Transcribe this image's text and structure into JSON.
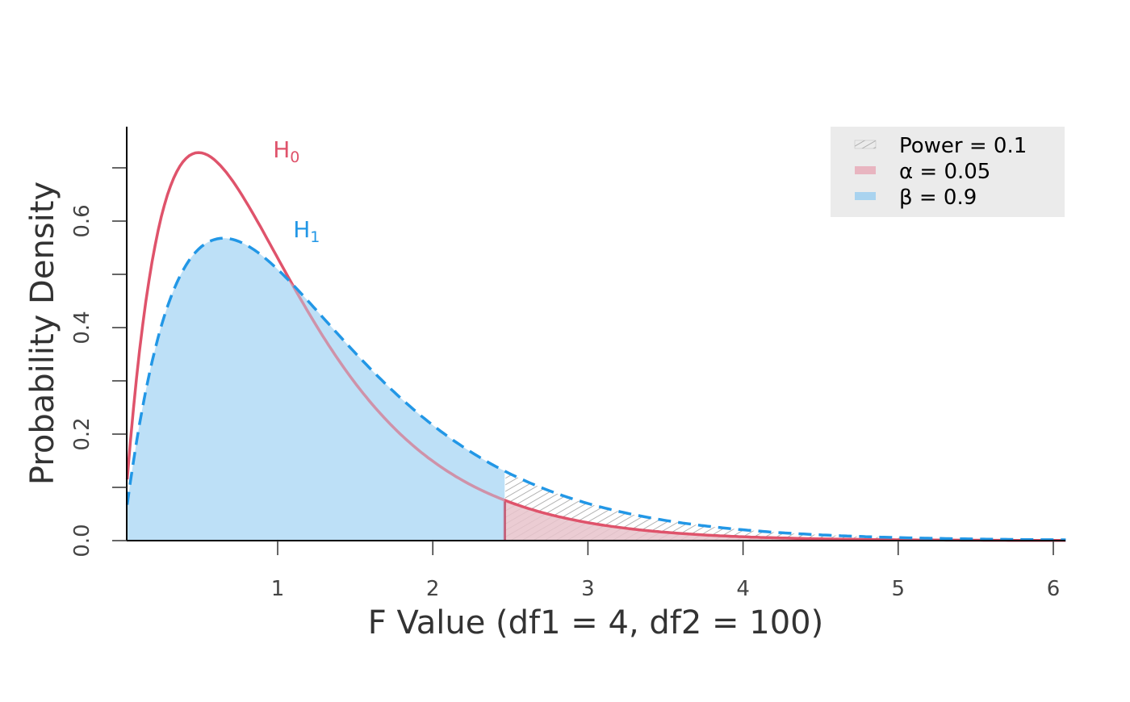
{
  "chart_data": {
    "type": "area",
    "title": "",
    "xlabel": "F Value (df1 = 4, df2 = 100)",
    "ylabel": "Probability Density",
    "xlim": [
      0.03,
      6.08
    ],
    "ylim": [
      0,
      0.777
    ],
    "x_ticks": [
      1,
      2,
      3,
      4,
      5,
      6
    ],
    "x_tick_labels": [
      "1",
      "2",
      "3",
      "4",
      "5",
      "6"
    ],
    "y_ticks": [
      0,
      0.2,
      0.4,
      0.6
    ],
    "y_tick_labels": [
      "0.0",
      "0.2",
      "0.4",
      "0.6"
    ],
    "y_minor_ticks": [
      0.1,
      0.3,
      0.5,
      0.7
    ],
    "df1": 4,
    "df2": 100,
    "ncp": 1.1,
    "critical_value": 2.463,
    "series": [
      {
        "name": "H0",
        "label_main": "H",
        "label_sub": "0",
        "style": "solid",
        "color": "#DF536B",
        "label_at": [
          0.97,
          0.72
        ]
      },
      {
        "name": "H1",
        "label_main": "H",
        "label_sub": "1",
        "style": "dashed",
        "color": "#2297E6",
        "label_at": [
          1.1,
          0.57
        ]
      }
    ],
    "legend": {
      "position": "top-right",
      "items": [
        {
          "label": "Power = 0.1",
          "fill": "hatch"
        },
        {
          "label": "α = 0.05",
          "fill": "#E8B5C0"
        },
        {
          "label": "β = 0.9",
          "fill": "#A9D3EF"
        }
      ]
    },
    "colors": {
      "beta_fill": "#BDE0F7",
      "alpha_fill": "#E7C3CB",
      "hatch": "#A0A0A0",
      "axis": "#000000",
      "text": "#333333"
    }
  }
}
